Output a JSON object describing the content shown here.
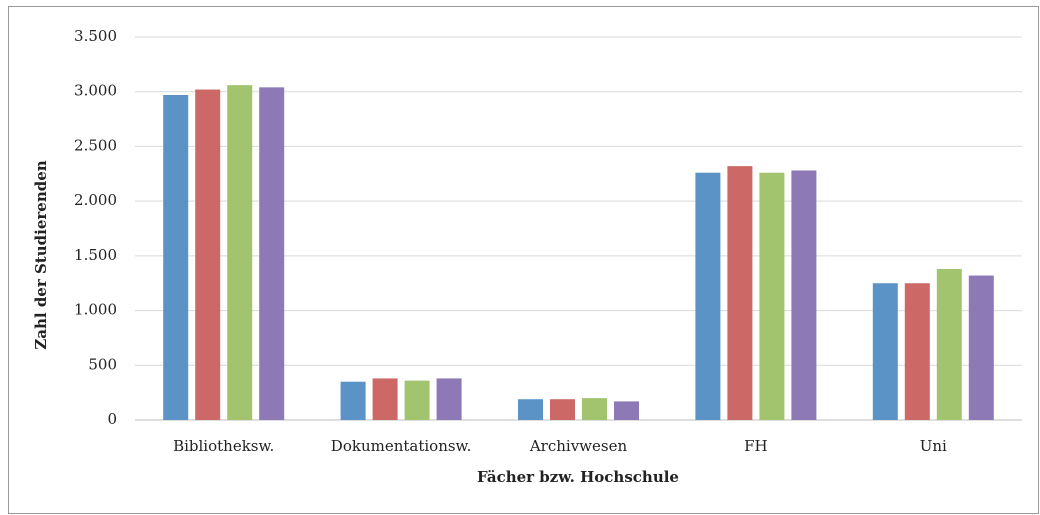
{
  "chart_data": {
    "type": "bar",
    "categories": [
      "Bibliotheksw.",
      "Dokumentationsw.",
      "Archivwesen",
      "FH",
      "Uni"
    ],
    "series": [
      {
        "color": "#5b93c7",
        "values": [
          2970,
          350,
          190,
          2260,
          1250
        ]
      },
      {
        "color": "#cc6966",
        "values": [
          3020,
          380,
          190,
          2320,
          1250
        ]
      },
      {
        "color": "#a3c46f",
        "values": [
          3060,
          360,
          200,
          2260,
          1380
        ]
      },
      {
        "color": "#8c79b5",
        "values": [
          3040,
          380,
          170,
          2280,
          1320
        ]
      }
    ],
    "xlabel": "Fächer bzw. Hochschule",
    "ylabel": "Zahl der Studierenden",
    "ylim": [
      0,
      3500
    ],
    "yticks": [
      0,
      500,
      {
        "value": 1000,
        "label": "1.000"
      },
      {
        "value": 1500,
        "label": "1.500"
      },
      {
        "value": 2000,
        "label": "2.000"
      },
      {
        "value": 2500,
        "label": "2.500"
      },
      {
        "value": 3000,
        "label": "3.000"
      },
      {
        "value": 3500,
        "label": "3.500"
      }
    ],
    "grid": true
  }
}
